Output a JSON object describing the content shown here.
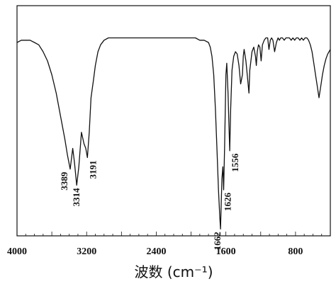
{
  "chart_data": {
    "type": "line",
    "title": "",
    "xlabel": "波数 (cm⁻¹)",
    "ylabel": "",
    "xlim": [
      4000,
      400
    ],
    "x_reversed": true,
    "ylim": [
      0,
      100
    ],
    "grid": false,
    "x_ticks": [
      "4000",
      "3200",
      "2400",
      "1600",
      "800"
    ],
    "annotations": [
      {
        "text": "3389",
        "x": 3389,
        "y": 29
      },
      {
        "text": "3314",
        "x": 3314,
        "y": 22
      },
      {
        "text": "3191",
        "x": 3191,
        "y": 34
      },
      {
        "text": "1662",
        "x": 1662,
        "y": 3
      },
      {
        "text": "1626",
        "x": 1626,
        "y": 20
      },
      {
        "text": "1556",
        "x": 1556,
        "y": 37
      }
    ],
    "series": [
      {
        "name": "",
        "x": [
          4000,
          3950,
          3900,
          3850,
          3800,
          3750,
          3700,
          3650,
          3600,
          3550,
          3500,
          3450,
          3420,
          3389,
          3360,
          3340,
          3314,
          3290,
          3260,
          3230,
          3210,
          3191,
          3170,
          3150,
          3120,
          3100,
          3070,
          3040,
          3000,
          2950,
          2900,
          2800,
          2700,
          2600,
          2500,
          2400,
          2300,
          2200,
          2100,
          2000,
          1950,
          1900,
          1850,
          1800,
          1780,
          1760,
          1740,
          1720,
          1700,
          1685,
          1670,
          1662,
          1655,
          1645,
          1635,
          1626,
          1615,
          1600,
          1590,
          1575,
          1565,
          1556,
          1545,
          1530,
          1510,
          1490,
          1470,
          1450,
          1430,
          1410,
          1400,
          1390,
          1370,
          1350,
          1335,
          1325,
          1300,
          1280,
          1260,
          1250,
          1240,
          1225,
          1210,
          1195,
          1180,
          1160,
          1140,
          1120,
          1105,
          1090,
          1075,
          1060,
          1040,
          1020,
          1000,
          985,
          970,
          950,
          930,
          910,
          890,
          870,
          850,
          830,
          810,
          790,
          770,
          750,
          730,
          710,
          690,
          670,
          650,
          630,
          610,
          590,
          570,
          550,
          530,
          510,
          490,
          470,
          450,
          430,
          415,
          400
        ],
        "y": [
          84,
          85,
          85,
          85,
          84,
          83,
          80,
          76,
          70,
          62,
          52,
          42,
          35,
          29,
          38,
          32,
          22,
          30,
          45,
          40,
          38,
          34,
          45,
          60,
          68,
          74,
          80,
          83,
          85,
          86,
          86,
          86,
          86,
          86,
          86,
          86,
          86,
          86,
          86,
          86,
          86,
          85,
          85,
          84,
          82,
          78,
          70,
          55,
          35,
          20,
          8,
          3,
          12,
          25,
          30,
          20,
          38,
          70,
          75,
          62,
          48,
          37,
          55,
          72,
          78,
          80,
          79,
          74,
          66,
          70,
          78,
          81,
          76,
          68,
          62,
          72,
          80,
          82,
          78,
          74,
          80,
          83,
          82,
          76,
          83,
          85,
          86,
          86,
          81,
          85,
          86,
          85,
          80,
          84,
          86,
          85,
          86,
          86,
          85,
          86,
          86,
          86,
          85,
          86,
          85,
          86,
          86,
          85,
          86,
          85,
          86,
          86,
          85,
          83,
          80,
          75,
          70,
          65,
          60,
          65,
          70,
          74,
          77,
          79,
          80,
          81
        ]
      }
    ]
  }
}
